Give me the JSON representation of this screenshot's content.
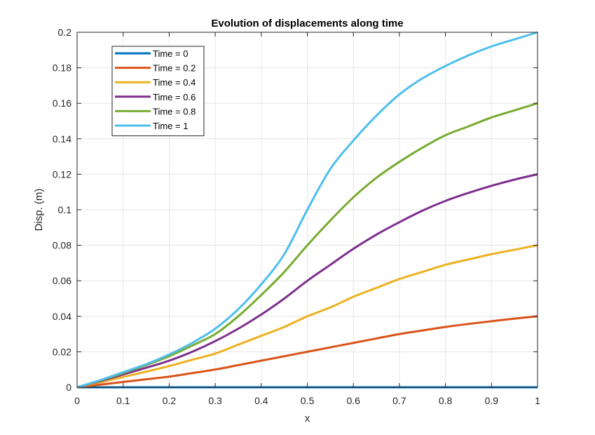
{
  "chart_data": {
    "type": "line",
    "title": "Evolution of displacements along time",
    "xlabel": "x",
    "ylabel": "Disp. (m)",
    "xlim": [
      0,
      1
    ],
    "ylim": [
      0,
      0.2
    ],
    "xticks": [
      "0",
      "0.1",
      "0.2",
      "0.3",
      "0.4",
      "0.5",
      "0.6",
      "0.7",
      "0.8",
      "0.9",
      "1"
    ],
    "yticks": [
      "0",
      "0.02",
      "0.04",
      "0.06",
      "0.08",
      "0.1",
      "0.12",
      "0.14",
      "0.16",
      "0.18",
      "0.2"
    ],
    "grid": true,
    "legend_position": "top-left",
    "x": [
      0,
      0.05,
      0.1,
      0.15,
      0.2,
      0.25,
      0.3,
      0.35,
      0.4,
      0.45,
      0.5,
      0.55,
      0.6,
      0.65,
      0.7,
      0.75,
      0.8,
      0.85,
      0.9,
      0.95,
      1
    ],
    "series": [
      {
        "name": "Time = 0",
        "color": "#0072BD",
        "values": [
          0,
          0,
          0,
          0,
          0,
          0,
          0,
          0,
          0,
          0,
          0,
          0,
          0,
          0,
          0,
          0,
          0,
          0,
          0,
          0,
          0
        ]
      },
      {
        "name": "Time = 0.2",
        "color": "#D95319",
        "values": [
          0,
          0.0015,
          0.003,
          0.0045,
          0.006,
          0.008,
          0.01,
          0.0125,
          0.015,
          0.0175,
          0.02,
          0.0225,
          0.025,
          0.0275,
          0.03,
          0.032,
          0.034,
          0.0357,
          0.0372,
          0.0387,
          0.04
        ]
      },
      {
        "name": "Time = 0.4",
        "color": "#EDB120",
        "values": [
          0,
          0.0028,
          0.0058,
          0.0088,
          0.012,
          0.0155,
          0.019,
          0.024,
          0.029,
          0.034,
          0.04,
          0.045,
          0.051,
          0.056,
          0.061,
          0.065,
          0.069,
          0.072,
          0.075,
          0.0775,
          0.08
        ]
      },
      {
        "name": "Time = 0.6",
        "color": "#7E2F8E",
        "values": [
          0,
          0.0035,
          0.0072,
          0.011,
          0.015,
          0.02,
          0.026,
          0.033,
          0.041,
          0.05,
          0.06,
          0.069,
          0.078,
          0.086,
          0.093,
          0.0995,
          0.105,
          0.1095,
          0.1135,
          0.117,
          0.12
        ]
      },
      {
        "name": "Time = 0.8",
        "color": "#77AC30",
        "values": [
          0,
          0.0038,
          0.008,
          0.0125,
          0.0175,
          0.0235,
          0.03,
          0.04,
          0.052,
          0.065,
          0.08,
          0.094,
          0.107,
          0.118,
          0.127,
          0.135,
          0.142,
          0.147,
          0.152,
          0.156,
          0.16
        ]
      },
      {
        "name": "Time = 1",
        "color": "#4DBEEE",
        "values": [
          0,
          0.004,
          0.0085,
          0.013,
          0.0185,
          0.025,
          0.033,
          0.044,
          0.058,
          0.075,
          0.1,
          0.123,
          0.139,
          0.153,
          0.165,
          0.174,
          0.181,
          0.187,
          0.192,
          0.196,
          0.2
        ]
      }
    ]
  }
}
